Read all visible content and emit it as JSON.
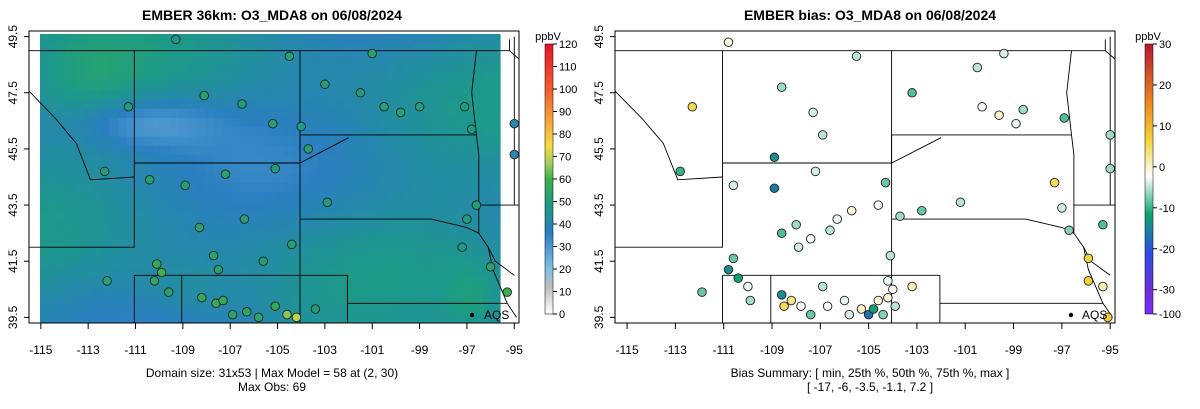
{
  "left_panel": {
    "title": "EMBER 36km: O3_MDA8 on 06/08/2024",
    "colorbar_unit": "ppbV",
    "colorbar_ticks": [
      "0",
      "10",
      "20",
      "30",
      "40",
      "50",
      "60",
      "70",
      "80",
      "90",
      "100",
      "110",
      "120"
    ],
    "colorbar_values": [
      0,
      10,
      20,
      30,
      40,
      50,
      60,
      70,
      80,
      90,
      100,
      110,
      120
    ],
    "caption_line1": "Domain size: 31x53 | Max Model = 58 at (2, 30)",
    "caption_line2": "Max Obs: 69",
    "aqs_label": "AQS"
  },
  "right_panel": {
    "title": "EMBER bias: O3_MDA8 on 06/08/2024",
    "colorbar_unit": "ppbV",
    "colorbar_ticks": [
      "-100",
      "-30",
      "-20",
      "-10",
      "0",
      "10",
      "20",
      "30"
    ],
    "colorbar_values": [
      -100,
      -30,
      -20,
      -10,
      0,
      10,
      20,
      30
    ],
    "caption_line1": "Bias Summary: [ min, 25th %, 50th %, 75th %, max ]",
    "caption_line2": "[ -17,  -6,  -3.5,  -1.1,  7.2 ]",
    "aqs_label": "AQS"
  },
  "axes": {
    "x_ticks": [
      "-115",
      "-113",
      "-111",
      "-109",
      "-107",
      "-105",
      "-103",
      "-101",
      "-99",
      "-97",
      "-95"
    ],
    "x_values": [
      -115,
      -113,
      -111,
      -109,
      -107,
      -105,
      -103,
      -101,
      -99,
      -97,
      -95
    ],
    "y_ticks": [
      "39.5",
      "41.5",
      "43.5",
      "45.5",
      "47.5",
      "49.5"
    ],
    "y_values": [
      39.5,
      41.5,
      43.5,
      45.5,
      47.5,
      49.5
    ],
    "lon_range": [
      -115.5,
      -94.8
    ],
    "lat_range": [
      39.3,
      49.7
    ]
  },
  "chart_data": [
    {
      "type": "heatmap",
      "title": "EMBER 36km: O3_MDA8 on 06/08/2024",
      "units": "ppbV",
      "color_range": [
        0,
        120
      ],
      "grid": [
        31,
        53
      ],
      "max_model": 58,
      "max_model_cell": [
        2,
        30
      ],
      "max_obs": 69,
      "stations": [
        {
          "lon": -109.3,
          "lat": 49.4,
          "value": 48
        },
        {
          "lon": -111.3,
          "lat": 47.0,
          "value": 50
        },
        {
          "lon": -108.1,
          "lat": 47.4,
          "value": 52
        },
        {
          "lon": -106.5,
          "lat": 47.1,
          "value": 50
        },
        {
          "lon": -104.5,
          "lat": 48.8,
          "value": 52
        },
        {
          "lon": -103.0,
          "lat": 47.8,
          "value": 50
        },
        {
          "lon": -104.0,
          "lat": 46.3,
          "value": 49
        },
        {
          "lon": -105.2,
          "lat": 46.4,
          "value": 51
        },
        {
          "lon": -101.0,
          "lat": 48.9,
          "value": 52
        },
        {
          "lon": -101.5,
          "lat": 47.5,
          "value": 50
        },
        {
          "lon": -100.5,
          "lat": 47.0,
          "value": 51
        },
        {
          "lon": -99.8,
          "lat": 46.8,
          "value": 52
        },
        {
          "lon": -99.0,
          "lat": 47.0,
          "value": 50
        },
        {
          "lon": -97.1,
          "lat": 47.0,
          "value": 48
        },
        {
          "lon": -96.8,
          "lat": 46.2,
          "value": 49
        },
        {
          "lon": -112.3,
          "lat": 44.7,
          "value": 50
        },
        {
          "lon": -110.4,
          "lat": 44.4,
          "value": 52
        },
        {
          "lon": -108.9,
          "lat": 44.2,
          "value": 52
        },
        {
          "lon": -107.2,
          "lat": 44.6,
          "value": 53
        },
        {
          "lon": -105.1,
          "lat": 44.8,
          "value": 50
        },
        {
          "lon": -103.7,
          "lat": 45.5,
          "value": 51
        },
        {
          "lon": -102.9,
          "lat": 43.6,
          "value": 50
        },
        {
          "lon": -106.4,
          "lat": 43.0,
          "value": 50
        },
        {
          "lon": -104.4,
          "lat": 42.1,
          "value": 51
        },
        {
          "lon": -105.6,
          "lat": 41.5,
          "value": 50
        },
        {
          "lon": -107.5,
          "lat": 41.2,
          "value": 52
        },
        {
          "lon": -108.3,
          "lat": 42.7,
          "value": 53
        },
        {
          "lon": -107.7,
          "lat": 41.7,
          "value": 52
        },
        {
          "lon": -97.0,
          "lat": 43.0,
          "value": 49
        },
        {
          "lon": -96.6,
          "lat": 43.5,
          "value": 50
        },
        {
          "lon": -97.2,
          "lat": 42.0,
          "value": 48
        },
        {
          "lon": -96.0,
          "lat": 41.3,
          "value": 52
        },
        {
          "lon": -95.3,
          "lat": 40.4,
          "value": 60
        },
        {
          "lon": -95.0,
          "lat": 46.4,
          "value": 40
        },
        {
          "lon": -95.0,
          "lat": 45.3,
          "value": 39
        },
        {
          "lon": -110.1,
          "lat": 41.4,
          "value": 57
        },
        {
          "lon": -109.9,
          "lat": 41.1,
          "value": 60
        },
        {
          "lon": -110.2,
          "lat": 40.8,
          "value": 55
        },
        {
          "lon": -109.6,
          "lat": 40.4,
          "value": 52
        },
        {
          "lon": -112.2,
          "lat": 40.8,
          "value": 52
        },
        {
          "lon": -108.2,
          "lat": 40.2,
          "value": 56
        },
        {
          "lon": -107.6,
          "lat": 40.0,
          "value": 58
        },
        {
          "lon": -107.3,
          "lat": 40.1,
          "value": 57
        },
        {
          "lon": -106.3,
          "lat": 39.7,
          "value": 55
        },
        {
          "lon": -105.1,
          "lat": 39.9,
          "value": 56
        },
        {
          "lon": -104.6,
          "lat": 39.6,
          "value": 65
        },
        {
          "lon": -104.2,
          "lat": 39.5,
          "value": 69
        },
        {
          "lon": -103.4,
          "lat": 39.8,
          "value": 50
        },
        {
          "lon": -106.9,
          "lat": 39.6,
          "value": 53
        },
        {
          "lon": -105.8,
          "lat": 39.5,
          "value": 54
        }
      ]
    },
    {
      "type": "scatter",
      "title": "EMBER bias: O3_MDA8 on 06/08/2024",
      "units": "ppbV",
      "color_range": [
        -100,
        30
      ],
      "bias_summary": {
        "min": -17,
        "p25": -6,
        "p50": -3.5,
        "p75": -1.1,
        "max": 7.2
      },
      "stations": [
        {
          "lon": -110.8,
          "lat": 49.3,
          "value": -1
        },
        {
          "lon": -112.3,
          "lat": 47.0,
          "value": 5
        },
        {
          "lon": -108.6,
          "lat": 47.7,
          "value": -6
        },
        {
          "lon": -107.3,
          "lat": 46.8,
          "value": -4
        },
        {
          "lon": -105.5,
          "lat": 48.8,
          "value": -5
        },
        {
          "lon": -103.2,
          "lat": 47.5,
          "value": -9
        },
        {
          "lon": -100.5,
          "lat": 48.4,
          "value": -5
        },
        {
          "lon": -100.3,
          "lat": 47.0,
          "value": -2
        },
        {
          "lon": -99.6,
          "lat": 46.7,
          "value": 0
        },
        {
          "lon": -98.9,
          "lat": 46.4,
          "value": -3
        },
        {
          "lon": -98.6,
          "lat": 46.9,
          "value": -6
        },
        {
          "lon": -99.4,
          "lat": 48.9,
          "value": -4
        },
        {
          "lon": -96.9,
          "lat": 46.6,
          "value": -9
        },
        {
          "lon": -95.0,
          "lat": 46.0,
          "value": -6
        },
        {
          "lon": -95.0,
          "lat": 44.8,
          "value": -6
        },
        {
          "lon": -106.9,
          "lat": 46.0,
          "value": -5
        },
        {
          "lon": -112.8,
          "lat": 44.7,
          "value": -10
        },
        {
          "lon": -110.6,
          "lat": 44.2,
          "value": -4
        },
        {
          "lon": -108.9,
          "lat": 45.2,
          "value": -14
        },
        {
          "lon": -108.9,
          "lat": 44.1,
          "value": -16
        },
        {
          "lon": -107.2,
          "lat": 44.7,
          "value": -4
        },
        {
          "lon": -104.6,
          "lat": 43.5,
          "value": -2
        },
        {
          "lon": -104.3,
          "lat": 44.3,
          "value": -8
        },
        {
          "lon": -103.7,
          "lat": 43.1,
          "value": -6
        },
        {
          "lon": -105.7,
          "lat": 43.3,
          "value": -1
        },
        {
          "lon": -106.3,
          "lat": 43.0,
          "value": -3
        },
        {
          "lon": -106.6,
          "lat": 42.6,
          "value": -5
        },
        {
          "lon": -108.0,
          "lat": 42.8,
          "value": -6
        },
        {
          "lon": -108.6,
          "lat": 42.5,
          "value": -9
        },
        {
          "lon": -107.9,
          "lat": 42.0,
          "value": -4
        },
        {
          "lon": -107.4,
          "lat": 42.3,
          "value": -2
        },
        {
          "lon": -104.1,
          "lat": 41.7,
          "value": -5
        },
        {
          "lon": -102.8,
          "lat": 43.3,
          "value": -8
        },
        {
          "lon": -101.2,
          "lat": 43.6,
          "value": -5
        },
        {
          "lon": -97.3,
          "lat": 44.3,
          "value": 5
        },
        {
          "lon": -97.0,
          "lat": 43.4,
          "value": -4
        },
        {
          "lon": -96.7,
          "lat": 42.6,
          "value": -7
        },
        {
          "lon": -95.3,
          "lat": 42.8,
          "value": -9
        },
        {
          "lon": -95.9,
          "lat": 41.6,
          "value": 6
        },
        {
          "lon": -95.9,
          "lat": 40.8,
          "value": 7
        },
        {
          "lon": -95.3,
          "lat": 40.6,
          "value": 1
        },
        {
          "lon": -95.1,
          "lat": 39.5,
          "value": 7
        },
        {
          "lon": -110.8,
          "lat": 41.2,
          "value": -14
        },
        {
          "lon": -110.4,
          "lat": 40.9,
          "value": -12
        },
        {
          "lon": -110.0,
          "lat": 40.6,
          "value": -3
        },
        {
          "lon": -110.6,
          "lat": 41.6,
          "value": -8
        },
        {
          "lon": -111.9,
          "lat": 40.4,
          "value": -8
        },
        {
          "lon": -109.9,
          "lat": 40.1,
          "value": -6
        },
        {
          "lon": -108.6,
          "lat": 40.3,
          "value": -14
        },
        {
          "lon": -108.2,
          "lat": 40.1,
          "value": 3
        },
        {
          "lon": -108.5,
          "lat": 39.9,
          "value": 5
        },
        {
          "lon": -107.8,
          "lat": 39.9,
          "value": -2
        },
        {
          "lon": -106.9,
          "lat": 40.6,
          "value": -5
        },
        {
          "lon": -106.0,
          "lat": 40.1,
          "value": -3
        },
        {
          "lon": -105.3,
          "lat": 39.8,
          "value": 0
        },
        {
          "lon": -104.6,
          "lat": 40.1,
          "value": -1
        },
        {
          "lon": -104.0,
          "lat": 40.5,
          "value": -2
        },
        {
          "lon": -104.2,
          "lat": 40.8,
          "value": -3
        },
        {
          "lon": -103.2,
          "lat": 40.6,
          "value": 1
        },
        {
          "lon": -105.0,
          "lat": 39.6,
          "value": -17
        },
        {
          "lon": -104.8,
          "lat": 39.8,
          "value": -12
        },
        {
          "lon": -104.4,
          "lat": 39.6,
          "value": -7
        },
        {
          "lon": -105.8,
          "lat": 39.6,
          "value": -4
        },
        {
          "lon": -106.7,
          "lat": 39.9,
          "value": -2
        },
        {
          "lon": -107.4,
          "lat": 39.6,
          "value": -8
        },
        {
          "lon": -103.9,
          "lat": 39.9,
          "value": -5
        },
        {
          "lon": -104.2,
          "lat": 40.2,
          "value": -1
        }
      ]
    }
  ]
}
